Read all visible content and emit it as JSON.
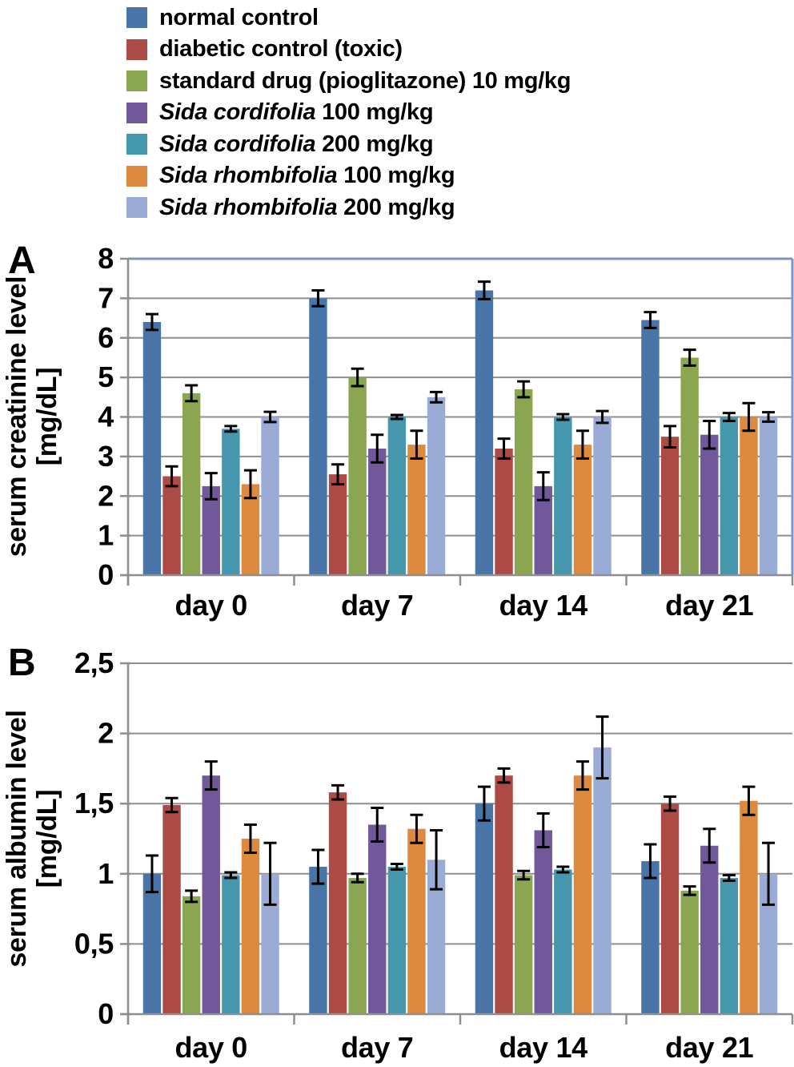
{
  "colors": {
    "series": [
      "#4874A8",
      "#AC4A46",
      "#8BA650",
      "#71589A",
      "#4497AC",
      "#DD8A3F",
      "#9AACD5"
    ],
    "grid": "#8E8E8E",
    "axis": "#8E8E8E",
    "frame_blue": "#7E95C4",
    "error_bar": "#000000",
    "text": "#000000",
    "background": "#FFFFFF"
  },
  "legend": {
    "items": [
      {
        "italic": "",
        "rest": "normal control"
      },
      {
        "italic": "",
        "rest": "diabetic control (toxic)"
      },
      {
        "italic": "",
        "rest": "standard drug (pioglitazone) 10 mg/kg"
      },
      {
        "italic": "Sida cordifolia",
        "rest": " 100 mg/kg"
      },
      {
        "italic": "Sida cordifolia",
        "rest": " 200 mg/kg"
      },
      {
        "italic": "Sida rhombifolia",
        "rest": " 100 mg/kg"
      },
      {
        "italic": "Sida rhombifolia",
        "rest": " 200 mg/kg"
      }
    ]
  },
  "chart_data": [
    {
      "id": "A",
      "panel_label": "A",
      "type": "bar",
      "ylabel": "serum creatinine level [mg/dL]",
      "ylabel_lines": [
        "serum creatinine level",
        "[mg/dL]"
      ],
      "categories": [
        "day 0",
        "day 7",
        "day 14",
        "day 21"
      ],
      "ylim": [
        0,
        8
      ],
      "ytick_labels": [
        "0",
        "1",
        "2",
        "3",
        "4",
        "5",
        "6",
        "7",
        "8"
      ],
      "grid": true,
      "error_bars": true,
      "legend_position": "above-figure",
      "frame": {
        "top": "#7E95C4",
        "right": "#7E95C4"
      },
      "series": [
        {
          "name": "normal control",
          "values": [
            6.4,
            7.0,
            7.2,
            6.45
          ],
          "errors": [
            0.2,
            0.2,
            0.22,
            0.2
          ]
        },
        {
          "name": "diabetic control (toxic)",
          "values": [
            2.5,
            2.55,
            3.2,
            3.5
          ],
          "errors": [
            0.25,
            0.25,
            0.25,
            0.27
          ]
        },
        {
          "name": "standard drug (pioglitazone) 10 mg/kg",
          "values": [
            4.6,
            5.0,
            4.7,
            5.5
          ],
          "errors": [
            0.2,
            0.22,
            0.2,
            0.2
          ]
        },
        {
          "name": "Sida cordifolia 100 mg/kg",
          "values": [
            2.25,
            3.2,
            2.25,
            3.55
          ],
          "errors": [
            0.33,
            0.35,
            0.35,
            0.35
          ]
        },
        {
          "name": "Sida cordifolia 200 mg/kg",
          "values": [
            3.7,
            4.0,
            4.0,
            4.0
          ],
          "errors": [
            0.07,
            0.05,
            0.07,
            0.1
          ]
        },
        {
          "name": "Sida rhombifolia 100 mg/kg",
          "values": [
            2.3,
            3.3,
            3.3,
            4.0
          ],
          "errors": [
            0.35,
            0.35,
            0.35,
            0.35
          ]
        },
        {
          "name": "Sida rhombifolia 200 mg/kg",
          "values": [
            4.0,
            4.5,
            4.0,
            4.0
          ],
          "errors": [
            0.13,
            0.13,
            0.15,
            0.12
          ]
        }
      ]
    },
    {
      "id": "B",
      "panel_label": "B",
      "type": "bar",
      "ylabel": "serum albumin level [mg/dL]",
      "ylabel_lines": [
        "serum albumin level",
        "[mg/dL]"
      ],
      "categories": [
        "day 0",
        "day 7",
        "day 14",
        "day 21"
      ],
      "ylim": [
        0,
        2.5
      ],
      "ytick_labels": [
        "0",
        "0,5",
        "1",
        "1,5",
        "2",
        "2,5"
      ],
      "grid": true,
      "error_bars": true,
      "legend_position": "above-figure",
      "frame": null,
      "series": [
        {
          "name": "normal control",
          "values": [
            1.0,
            1.05,
            1.5,
            1.09
          ],
          "errors": [
            0.13,
            0.12,
            0.12,
            0.12
          ]
        },
        {
          "name": "diabetic control (toxic)",
          "values": [
            1.49,
            1.58,
            1.7,
            1.5
          ],
          "errors": [
            0.05,
            0.05,
            0.05,
            0.05
          ]
        },
        {
          "name": "standard drug (pioglitazone) 10 mg/kg",
          "values": [
            0.84,
            0.97,
            0.99,
            0.88
          ],
          "errors": [
            0.04,
            0.03,
            0.03,
            0.03
          ]
        },
        {
          "name": "Sida cordifolia 100 mg/kg",
          "values": [
            1.7,
            1.35,
            1.31,
            1.2
          ],
          "errors": [
            0.1,
            0.12,
            0.12,
            0.12
          ]
        },
        {
          "name": "Sida cordifolia 200 mg/kg",
          "values": [
            0.99,
            1.05,
            1.03,
            0.97
          ],
          "errors": [
            0.02,
            0.02,
            0.02,
            0.02
          ]
        },
        {
          "name": "Sida rhombifolia 100 mg/kg",
          "values": [
            1.25,
            1.32,
            1.7,
            1.52
          ],
          "errors": [
            0.1,
            0.1,
            0.1,
            0.1
          ]
        },
        {
          "name": "Sida rhombifolia 200 mg/kg",
          "values": [
            1.0,
            1.1,
            1.9,
            1.0
          ],
          "errors": [
            0.22,
            0.21,
            0.22,
            0.22
          ]
        }
      ]
    }
  ]
}
